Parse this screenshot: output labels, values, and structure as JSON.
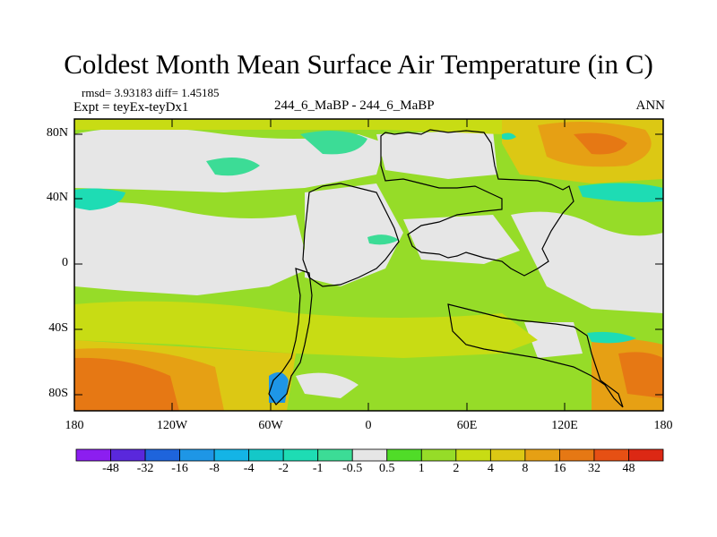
{
  "title": "Coldest Month Mean Surface Air Temperature (in C)",
  "stats": "rmsd= 3.93183 diff= 1.45185",
  "expt": "Expt = teyEx-teyDx1",
  "center_label": "244_6_MaBP - 244_6_MaBP",
  "season": "ANN",
  "lat_labels": [
    "80N",
    "40N",
    "0",
    "40S",
    "80S"
  ],
  "lon_labels": [
    "180",
    "120W",
    "60W",
    "0",
    "60E",
    "120E",
    "180"
  ],
  "colorbar": {
    "labels": [
      "-48",
      "-32",
      "-16",
      "-8",
      "-4",
      "-2",
      "-1",
      "-0.5",
      "0.5",
      "1",
      "2",
      "4",
      "8",
      "16",
      "32",
      "48"
    ],
    "colors": [
      "#8c1ef0",
      "#5a28dc",
      "#1e64dc",
      "#1e96e6",
      "#14b4e6",
      "#14c8c8",
      "#1edcb4",
      "#3cdc96",
      "#e6e6e6",
      "#50dc28",
      "#96dc28",
      "#c8dc14",
      "#dcc814",
      "#e6a014",
      "#e67814",
      "#e65014",
      "#dc2814"
    ]
  }
}
